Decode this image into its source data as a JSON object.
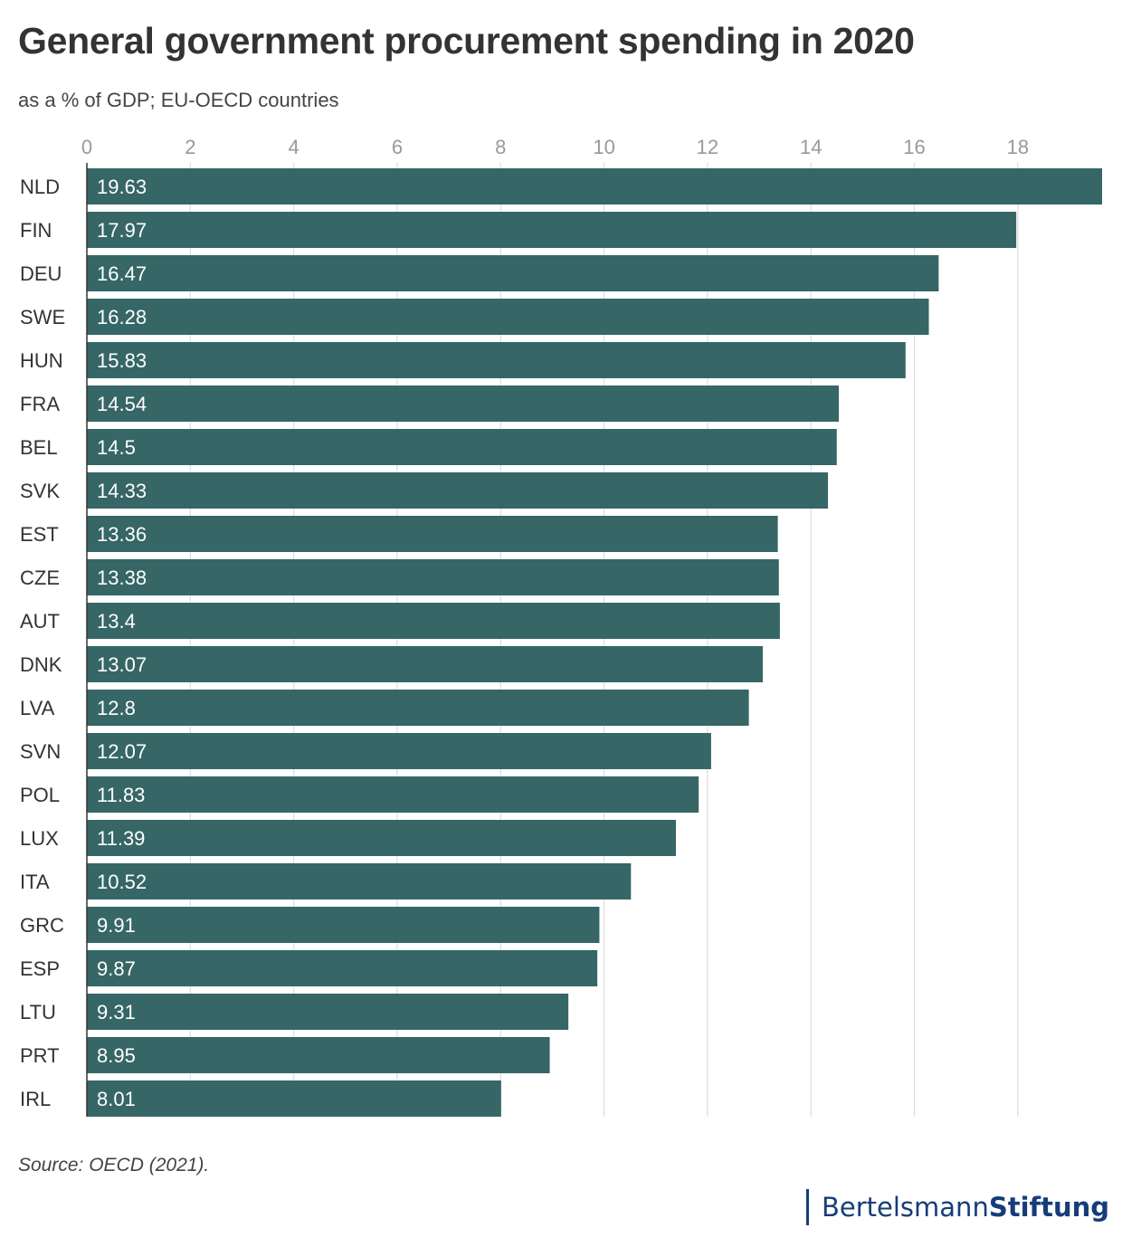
{
  "header": {
    "title": "General government procurement spending in 2020",
    "subtitle": "as a % of GDP; EU-OECD countries"
  },
  "footer": {
    "source": "Source: OECD (2021).",
    "logo_part1": "Bertelsmann",
    "logo_part2": "Stiftung"
  },
  "colors": {
    "bar": "#366666",
    "bar_label": "#ffffff",
    "grid": "#dddddd",
    "axis": "#333333",
    "tick_label": "#999999",
    "category_label": "#333333",
    "logo": "#163d7a"
  },
  "chart_data": {
    "type": "bar",
    "orientation": "horizontal",
    "title": "General government procurement spending in 2020",
    "subtitle": "as a % of GDP; EU-OECD countries",
    "xlim": [
      0,
      19.63
    ],
    "xticks": [
      0,
      2,
      4,
      6,
      8,
      10,
      12,
      14,
      16,
      18
    ],
    "grid": true,
    "categories": [
      "NLD",
      "FIN",
      "DEU",
      "SWE",
      "HUN",
      "FRA",
      "BEL",
      "SVK",
      "EST",
      "CZE",
      "AUT",
      "DNK",
      "LVA",
      "SVN",
      "POL",
      "LUX",
      "ITA",
      "GRC",
      "ESP",
      "LTU",
      "PRT",
      "IRL"
    ],
    "values": [
      19.63,
      17.97,
      16.47,
      16.28,
      15.83,
      14.54,
      14.5,
      14.33,
      13.36,
      13.38,
      13.4,
      13.07,
      12.8,
      12.07,
      11.83,
      11.39,
      10.52,
      9.91,
      9.87,
      9.31,
      8.95,
      8.01
    ]
  }
}
